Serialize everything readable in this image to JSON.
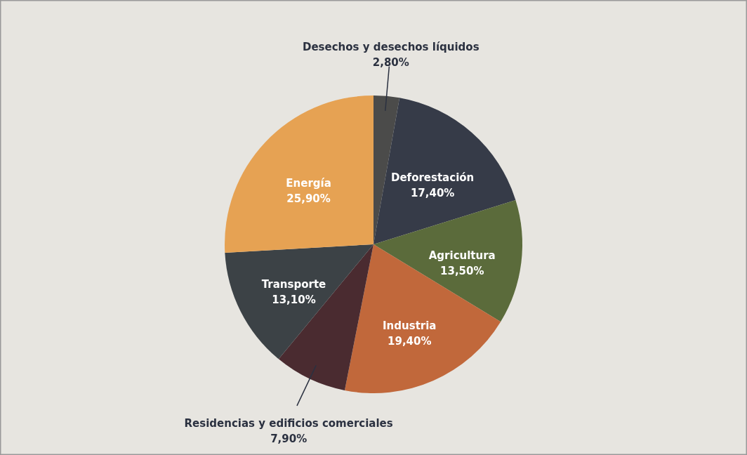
{
  "chart_data": {
    "type": "pie",
    "categories": [
      "Desechos y desechos líquidos",
      "Deforestación",
      "Agricultura",
      "Industria",
      "Residencias y edificios comerciales",
      "Transporte",
      "Energía"
    ],
    "values": [
      2.8,
      17.4,
      13.5,
      19.4,
      7.9,
      13.1,
      25.9
    ],
    "value_labels": [
      "2,80%",
      "17,40%",
      "13,50%",
      "19,40%",
      "7,90%",
      "13,10%",
      "25,90%"
    ],
    "colors": [
      "#4b4b4a",
      "#363b48",
      "#5b6b3b",
      "#c1683b",
      "#4a2b30",
      "#3c4246",
      "#e6a253"
    ]
  }
}
